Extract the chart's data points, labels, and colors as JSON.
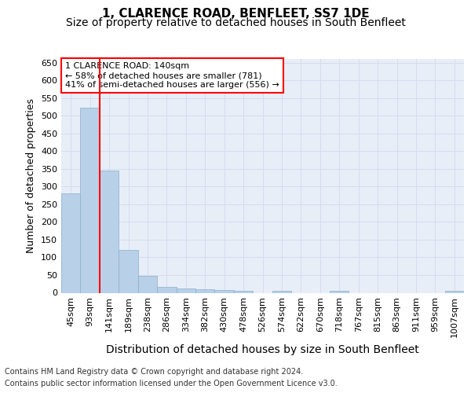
{
  "title": "1, CLARENCE ROAD, BENFLEET, SS7 1DE",
  "subtitle": "Size of property relative to detached houses in South Benfleet",
  "xlabel": "Distribution of detached houses by size in South Benfleet",
  "ylabel": "Number of detached properties",
  "categories": [
    "45sqm",
    "93sqm",
    "141sqm",
    "189sqm",
    "238sqm",
    "286sqm",
    "334sqm",
    "382sqm",
    "430sqm",
    "478sqm",
    "526sqm",
    "574sqm",
    "622sqm",
    "670sqm",
    "718sqm",
    "767sqm",
    "815sqm",
    "863sqm",
    "911sqm",
    "959sqm",
    "1007sqm"
  ],
  "values": [
    280,
    522,
    345,
    122,
    48,
    17,
    12,
    10,
    7,
    6,
    0,
    5,
    0,
    0,
    6,
    0,
    0,
    0,
    0,
    0,
    5
  ],
  "bar_color": "#b8d0e8",
  "bar_edgecolor": "#8ab0cc",
  "grid_color": "#d4dded",
  "background_color": "#e8eef8",
  "red_line_index": 2,
  "annotation_box_text": "1 CLARENCE ROAD: 140sqm\n← 58% of detached houses are smaller (781)\n41% of semi-detached houses are larger (556) →",
  "footer_line1": "Contains HM Land Registry data © Crown copyright and database right 2024.",
  "footer_line2": "Contains public sector information licensed under the Open Government Licence v3.0.",
  "ylim": [
    0,
    660
  ],
  "yticks": [
    0,
    50,
    100,
    150,
    200,
    250,
    300,
    350,
    400,
    450,
    500,
    550,
    600,
    650
  ],
  "title_fontsize": 11,
  "subtitle_fontsize": 10,
  "xlabel_fontsize": 10,
  "ylabel_fontsize": 9,
  "tick_fontsize": 8,
  "annot_fontsize": 8,
  "footer_fontsize": 7
}
